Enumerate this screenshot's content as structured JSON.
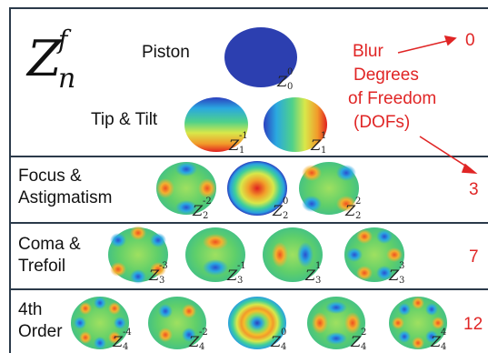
{
  "header": {
    "symbol_base": "Z",
    "symbol_sup": "f",
    "symbol_sub": "n"
  },
  "rows": [
    {
      "label": "Piston",
      "dof": "0"
    },
    {
      "label": "Tip & Tilt",
      "dof": ""
    },
    {
      "label": "Focus & Astigmatism",
      "label_line1": "Focus &",
      "label_line2": "Astigmatism",
      "dof": "3"
    },
    {
      "label": "Coma & Trefoil",
      "label_line1": "Coma &",
      "label_line2": "Trefoil",
      "dof": "7"
    },
    {
      "label": "4th Order",
      "label_line1": "4th",
      "label_line2": "Order",
      "dof": "12"
    }
  ],
  "annotation": {
    "blur": "Blur",
    "line2": "Degrees",
    "line3": "of Freedom",
    "line4": "(DOFs)"
  },
  "modes": [
    {
      "n": "0",
      "m": "0"
    },
    {
      "n": "1",
      "m": "-1"
    },
    {
      "n": "1",
      "m": "1"
    },
    {
      "n": "2",
      "m": "-2"
    },
    {
      "n": "2",
      "m": "0"
    },
    {
      "n": "2",
      "m": "2"
    },
    {
      "n": "3",
      "m": "-3"
    },
    {
      "n": "3",
      "m": "-1"
    },
    {
      "n": "3",
      "m": "1"
    },
    {
      "n": "3",
      "m": "3"
    },
    {
      "n": "4",
      "m": "-4"
    },
    {
      "n": "4",
      "m": "-2"
    },
    {
      "n": "4",
      "m": "0"
    },
    {
      "n": "4",
      "m": "2"
    },
    {
      "n": "4",
      "m": "4"
    }
  ],
  "colors": {
    "frame": "#2b3a4a",
    "annotation_red": "#e02525",
    "piston_blue": "#2c3fb0"
  }
}
